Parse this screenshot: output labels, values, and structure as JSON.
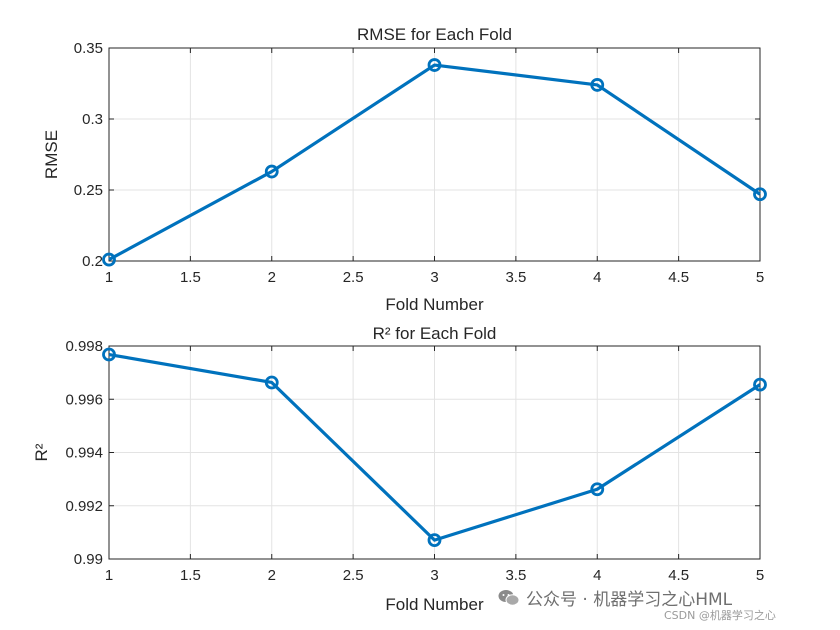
{
  "chart_data": [
    {
      "type": "line",
      "title": "RMSE for Each Fold",
      "xlabel": "Fold Number",
      "ylabel": "RMSE",
      "xlim": [
        1,
        5
      ],
      "ylim": [
        0.2,
        0.35
      ],
      "xticks": [
        1,
        1.5,
        2,
        2.5,
        3,
        3.5,
        4,
        4.5,
        5
      ],
      "xtick_labels": [
        "1",
        "1.5",
        "2",
        "2.5",
        "3",
        "3.5",
        "4",
        "4.5",
        "5"
      ],
      "yticks": [
        0.2,
        0.25,
        0.3,
        0.35
      ],
      "ytick_labels": [
        "0.2",
        "0.25",
        "0.3",
        "0.35"
      ],
      "grid": true,
      "series": [
        {
          "name": "RMSE",
          "color": "#0072BD",
          "marker": "circle",
          "x": [
            1,
            2,
            3,
            4,
            5
          ],
          "values": [
            0.201,
            0.263,
            0.338,
            0.324,
            0.247
          ]
        }
      ]
    },
    {
      "type": "line",
      "title": "R² for Each Fold",
      "xlabel": "Fold Number",
      "ylabel": "R²",
      "xlim": [
        1,
        5
      ],
      "ylim": [
        0.99,
        0.998
      ],
      "xticks": [
        1,
        1.5,
        2,
        2.5,
        3,
        3.5,
        4,
        4.5,
        5
      ],
      "xtick_labels": [
        "1",
        "1.5",
        "2",
        "2.5",
        "3",
        "3.5",
        "4",
        "4.5",
        "5"
      ],
      "yticks": [
        0.99,
        0.992,
        0.994,
        0.996,
        0.998
      ],
      "ytick_labels": [
        "0.99",
        "0.992",
        "0.994",
        "0.996",
        "0.998"
      ],
      "grid": true,
      "series": [
        {
          "name": "R²",
          "color": "#0072BD",
          "marker": "circle",
          "x": [
            1,
            2,
            3,
            4,
            5
          ],
          "values": [
            0.99768,
            0.99663,
            0.99071,
            0.99262,
            0.99655
          ]
        }
      ]
    }
  ],
  "watermark": {
    "main": "公众号 · 机器学习之心HML",
    "sub": "CSDN @机器学习之心"
  }
}
